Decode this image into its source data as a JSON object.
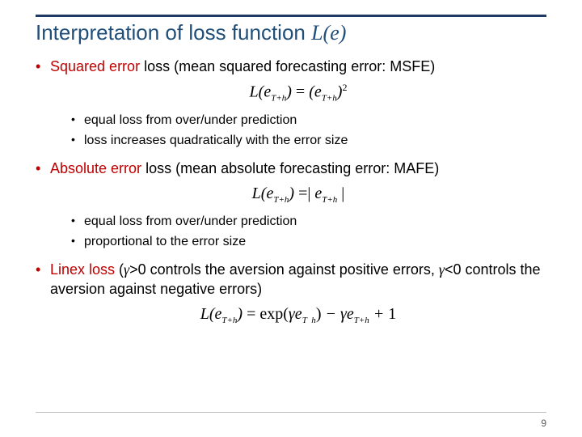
{
  "colors": {
    "rule": "#1f3864",
    "title": "#1f4e79",
    "accent": "#c00000",
    "body": "#000000",
    "footer_rule": "#bfbfbf",
    "pagenum": "#595959",
    "background": "#ffffff"
  },
  "typography": {
    "title_fontsize": 26,
    "body_fontsize": 18,
    "sub_fontsize": 16,
    "formula_fontsize": 20,
    "formula_family": "Times New Roman"
  },
  "title": {
    "prefix": "Interpretation of loss function ",
    "ital": "L(e)"
  },
  "bullets": [
    {
      "accent": "Squared error",
      "rest": " loss (mean squared forecasting error: MSFE)",
      "formula_html": "L(e<sub>T+h</sub>) <span class='rm'>=</span> (e<sub>T+h</sub>)<sup><span class='rm'>2</span></sup>",
      "sub": [
        "equal loss from over/under prediction",
        "loss increases quadratically with the error size"
      ]
    },
    {
      "accent": "Absolute error",
      "rest": " loss (mean absolute forecasting error: MAFE)",
      "formula_html": "L(e<sub>T+h</sub>) <span class='rm'>=|</span> e<sub>T+h</sub> <span class='rm'>|</span>",
      "sub": [
        "equal loss from over/under prediction",
        "proportional to the error size"
      ]
    },
    {
      "accent": "Linex loss",
      "rest_html": " (<span class='gamma'>γ</span>>0 controls the aversion against positive errors, <span class='gamma'>γ</span><0 controls the aversion against negative errors)",
      "formula_html": "L(e<sub>T+h</sub>) <span class='rm'>= exp(</span>γe<sub>T&nbsp;&nbsp;h</sub><span class='rm'>)</span> − γe<sub>T+h</sub> + <span class='rm'>1</span>",
      "sub": []
    }
  ],
  "page_number": "9"
}
